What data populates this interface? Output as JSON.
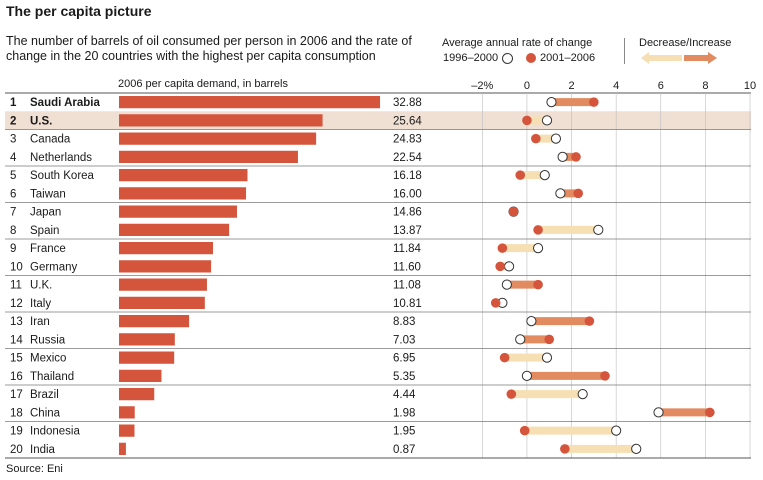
{
  "title": "The per capita picture",
  "subtitle_lines": [
    "The number of barrels of oil consumed per person in 2006 and the rate of",
    "change in the 20 countries with the highest per capita consumption"
  ],
  "legend": {
    "heading": "Average annual rate of change",
    "period_a": "1996–2000",
    "period_b": "2001–2006",
    "decrease_increase": "Decrease/Increase",
    "decrease_color": "#f5dfb3",
    "increase_color": "#e28a60",
    "dot_color": "#d4553c"
  },
  "demand_label": "2006 per capita demand, in barrels",
  "source": "Source: Eni",
  "chart_data": [
    {
      "type": "bar",
      "orientation": "horizontal",
      "xlabel": "2006 per capita demand, in barrels",
      "categories": [
        "Saudi Arabia",
        "U.S.",
        "Canada",
        "Netherlands",
        "South Korea",
        "Taiwan",
        "Japan",
        "Spain",
        "France",
        "Germany",
        "U.K.",
        "Italy",
        "Iran",
        "Russia",
        "Mexico",
        "Thailand",
        "Brazil",
        "China",
        "Indonesia",
        "India"
      ],
      "ranks": [
        "1",
        "2",
        "3",
        "4",
        "5",
        "6",
        "7",
        "8",
        "9",
        "10",
        "11",
        "12",
        "13",
        "14",
        "15",
        "16",
        "17",
        "18",
        "19",
        "20"
      ],
      "values": [
        32.88,
        25.64,
        24.83,
        22.54,
        16.18,
        16.0,
        14.86,
        13.87,
        11.84,
        11.6,
        11.08,
        10.81,
        8.83,
        7.03,
        6.95,
        5.35,
        4.44,
        1.98,
        1.95,
        0.87
      ],
      "value_labels": [
        "32.88",
        "25.64",
        "24.83",
        "22.54",
        "16.18",
        "16.00",
        "14.86",
        "13.87",
        "11.84",
        "11.60",
        "11.08",
        "10.81",
        "8.83",
        "7.03",
        "6.95",
        "5.35",
        "4.44",
        "1.98",
        "1.95",
        "0.87"
      ],
      "bar_color": "#d4553c",
      "highlight": "U.S.",
      "highlight_color": "#f0dfd3"
    },
    {
      "type": "scatter",
      "title": "Average annual rate of change",
      "xlim": [
        -3,
        10
      ],
      "x_ticks": [
        -2,
        0,
        2,
        4,
        6,
        8,
        10
      ],
      "x_tick_labels": [
        "–2%",
        "0",
        "2",
        "4",
        "6",
        "8",
        "10"
      ],
      "series": [
        {
          "name": "1996–2000",
          "values": [
            1.1,
            0.9,
            1.3,
            1.6,
            0.8,
            1.5,
            -0.6,
            3.2,
            0.5,
            -0.8,
            -0.9,
            -1.1,
            0.2,
            -0.3,
            0.9,
            0.0,
            2.5,
            5.9,
            4.0,
            4.9
          ]
        },
        {
          "name": "2001–2006",
          "values": [
            3.0,
            0.0,
            0.4,
            2.2,
            -0.3,
            2.3,
            -0.6,
            0.5,
            -1.1,
            -1.2,
            0.5,
            -1.4,
            2.8,
            1.0,
            -1.0,
            3.5,
            -0.7,
            8.2,
            -0.1,
            1.7
          ]
        }
      ]
    }
  ]
}
